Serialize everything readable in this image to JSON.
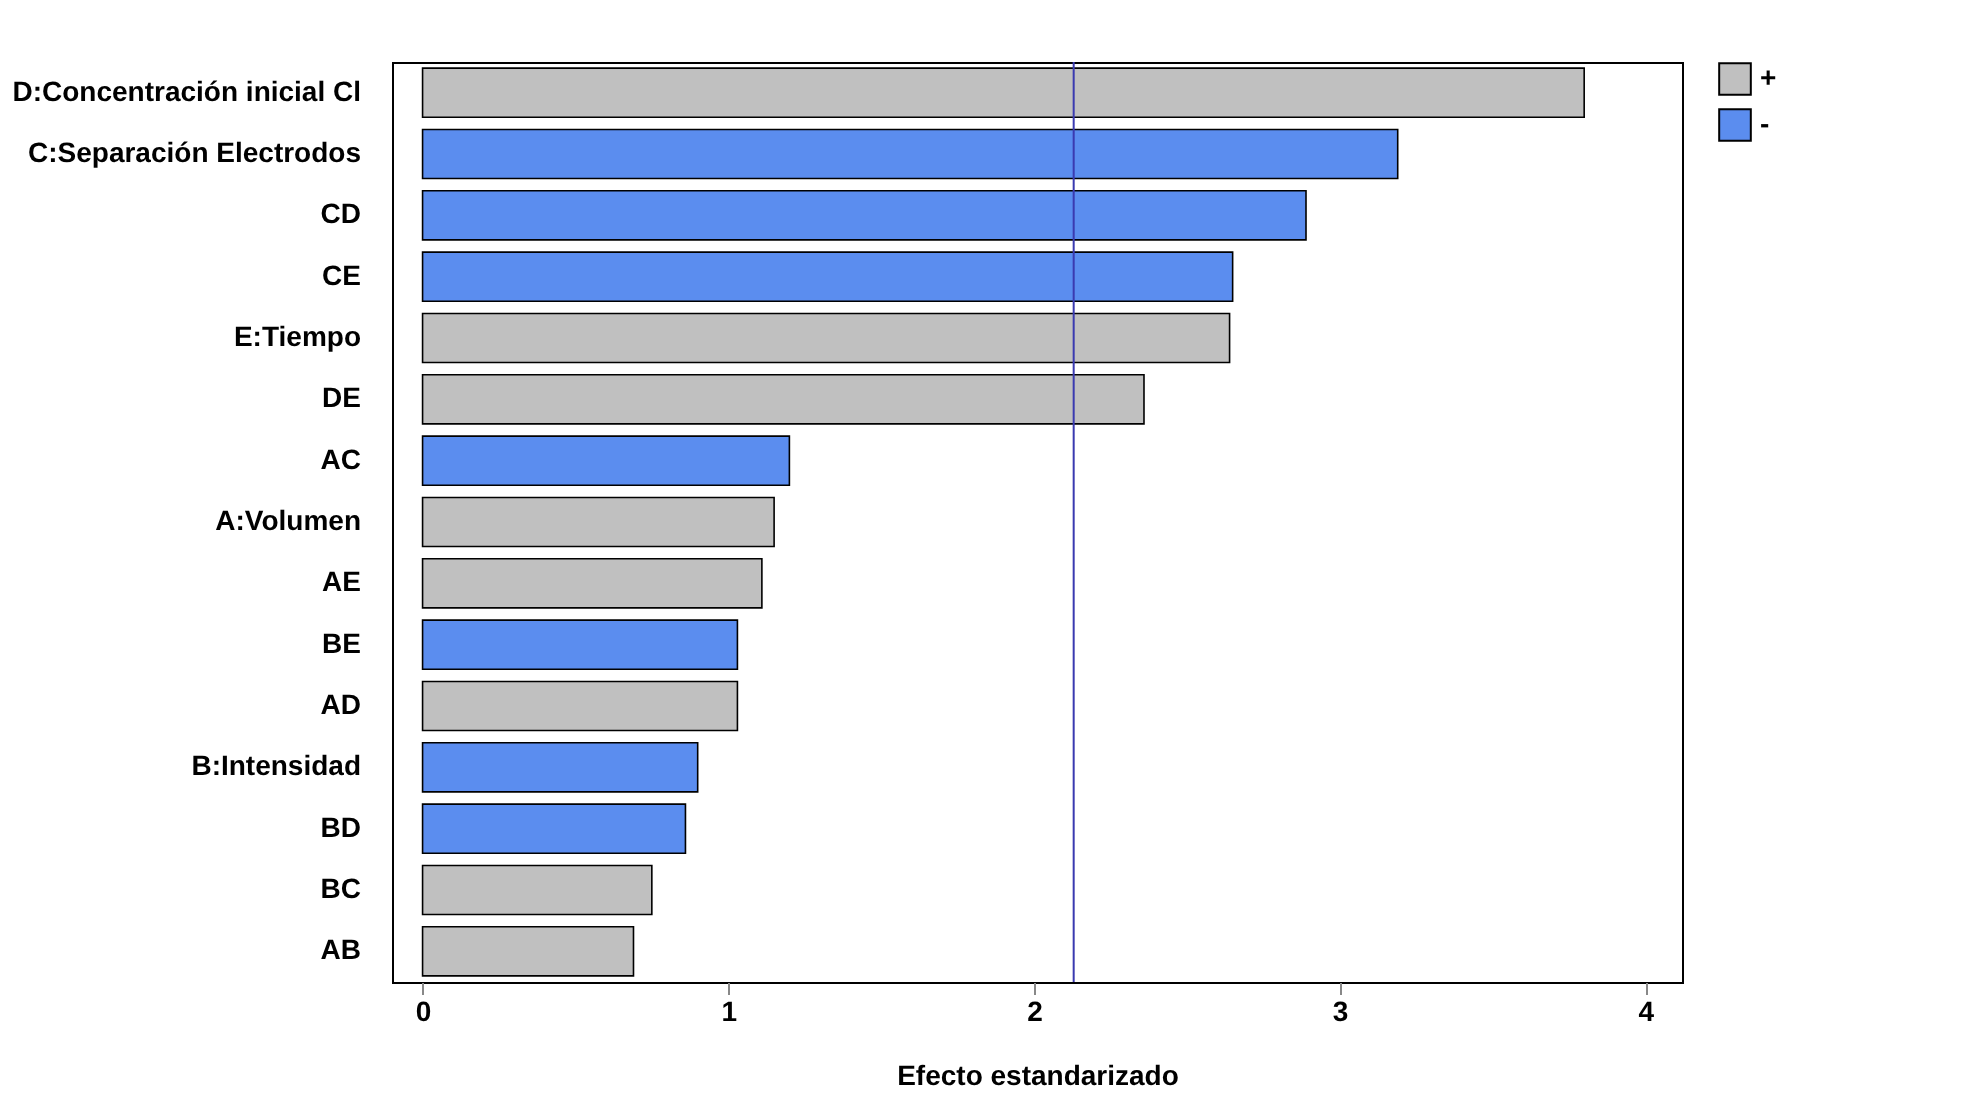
{
  "chart_data": {
    "type": "bar",
    "orientation": "horizontal",
    "xlabel": "Efecto estandarizado",
    "categories": [
      "D:Concentración inicial Cl",
      "C:Separación Electrodos",
      "CD",
      "CE",
      "E:Tiempo",
      "DE",
      "AC",
      "A:Volumen",
      "AE",
      "BE",
      "AD",
      "B:Intensidad",
      "BD",
      "BC",
      "AB"
    ],
    "series": [
      {
        "name": "+",
        "color": "#c0c0c0",
        "values": [
          3.8,
          null,
          null,
          null,
          2.64,
          2.36,
          null,
          1.15,
          1.11,
          null,
          1.03,
          null,
          null,
          0.75,
          0.69
        ]
      },
      {
        "name": "-",
        "color": "#5b8def",
        "values": [
          null,
          3.19,
          2.89,
          2.65,
          null,
          null,
          1.2,
          null,
          null,
          1.03,
          null,
          0.9,
          0.86,
          null,
          null
        ]
      }
    ],
    "xlim": [
      -0.1,
      4.12
    ],
    "xticks": [
      0,
      1,
      2,
      3,
      4
    ],
    "ref_lines": [
      {
        "axis": "x",
        "value": 2.13,
        "color": "#3a3ab0"
      }
    ],
    "grid": false,
    "legend": "top right"
  }
}
